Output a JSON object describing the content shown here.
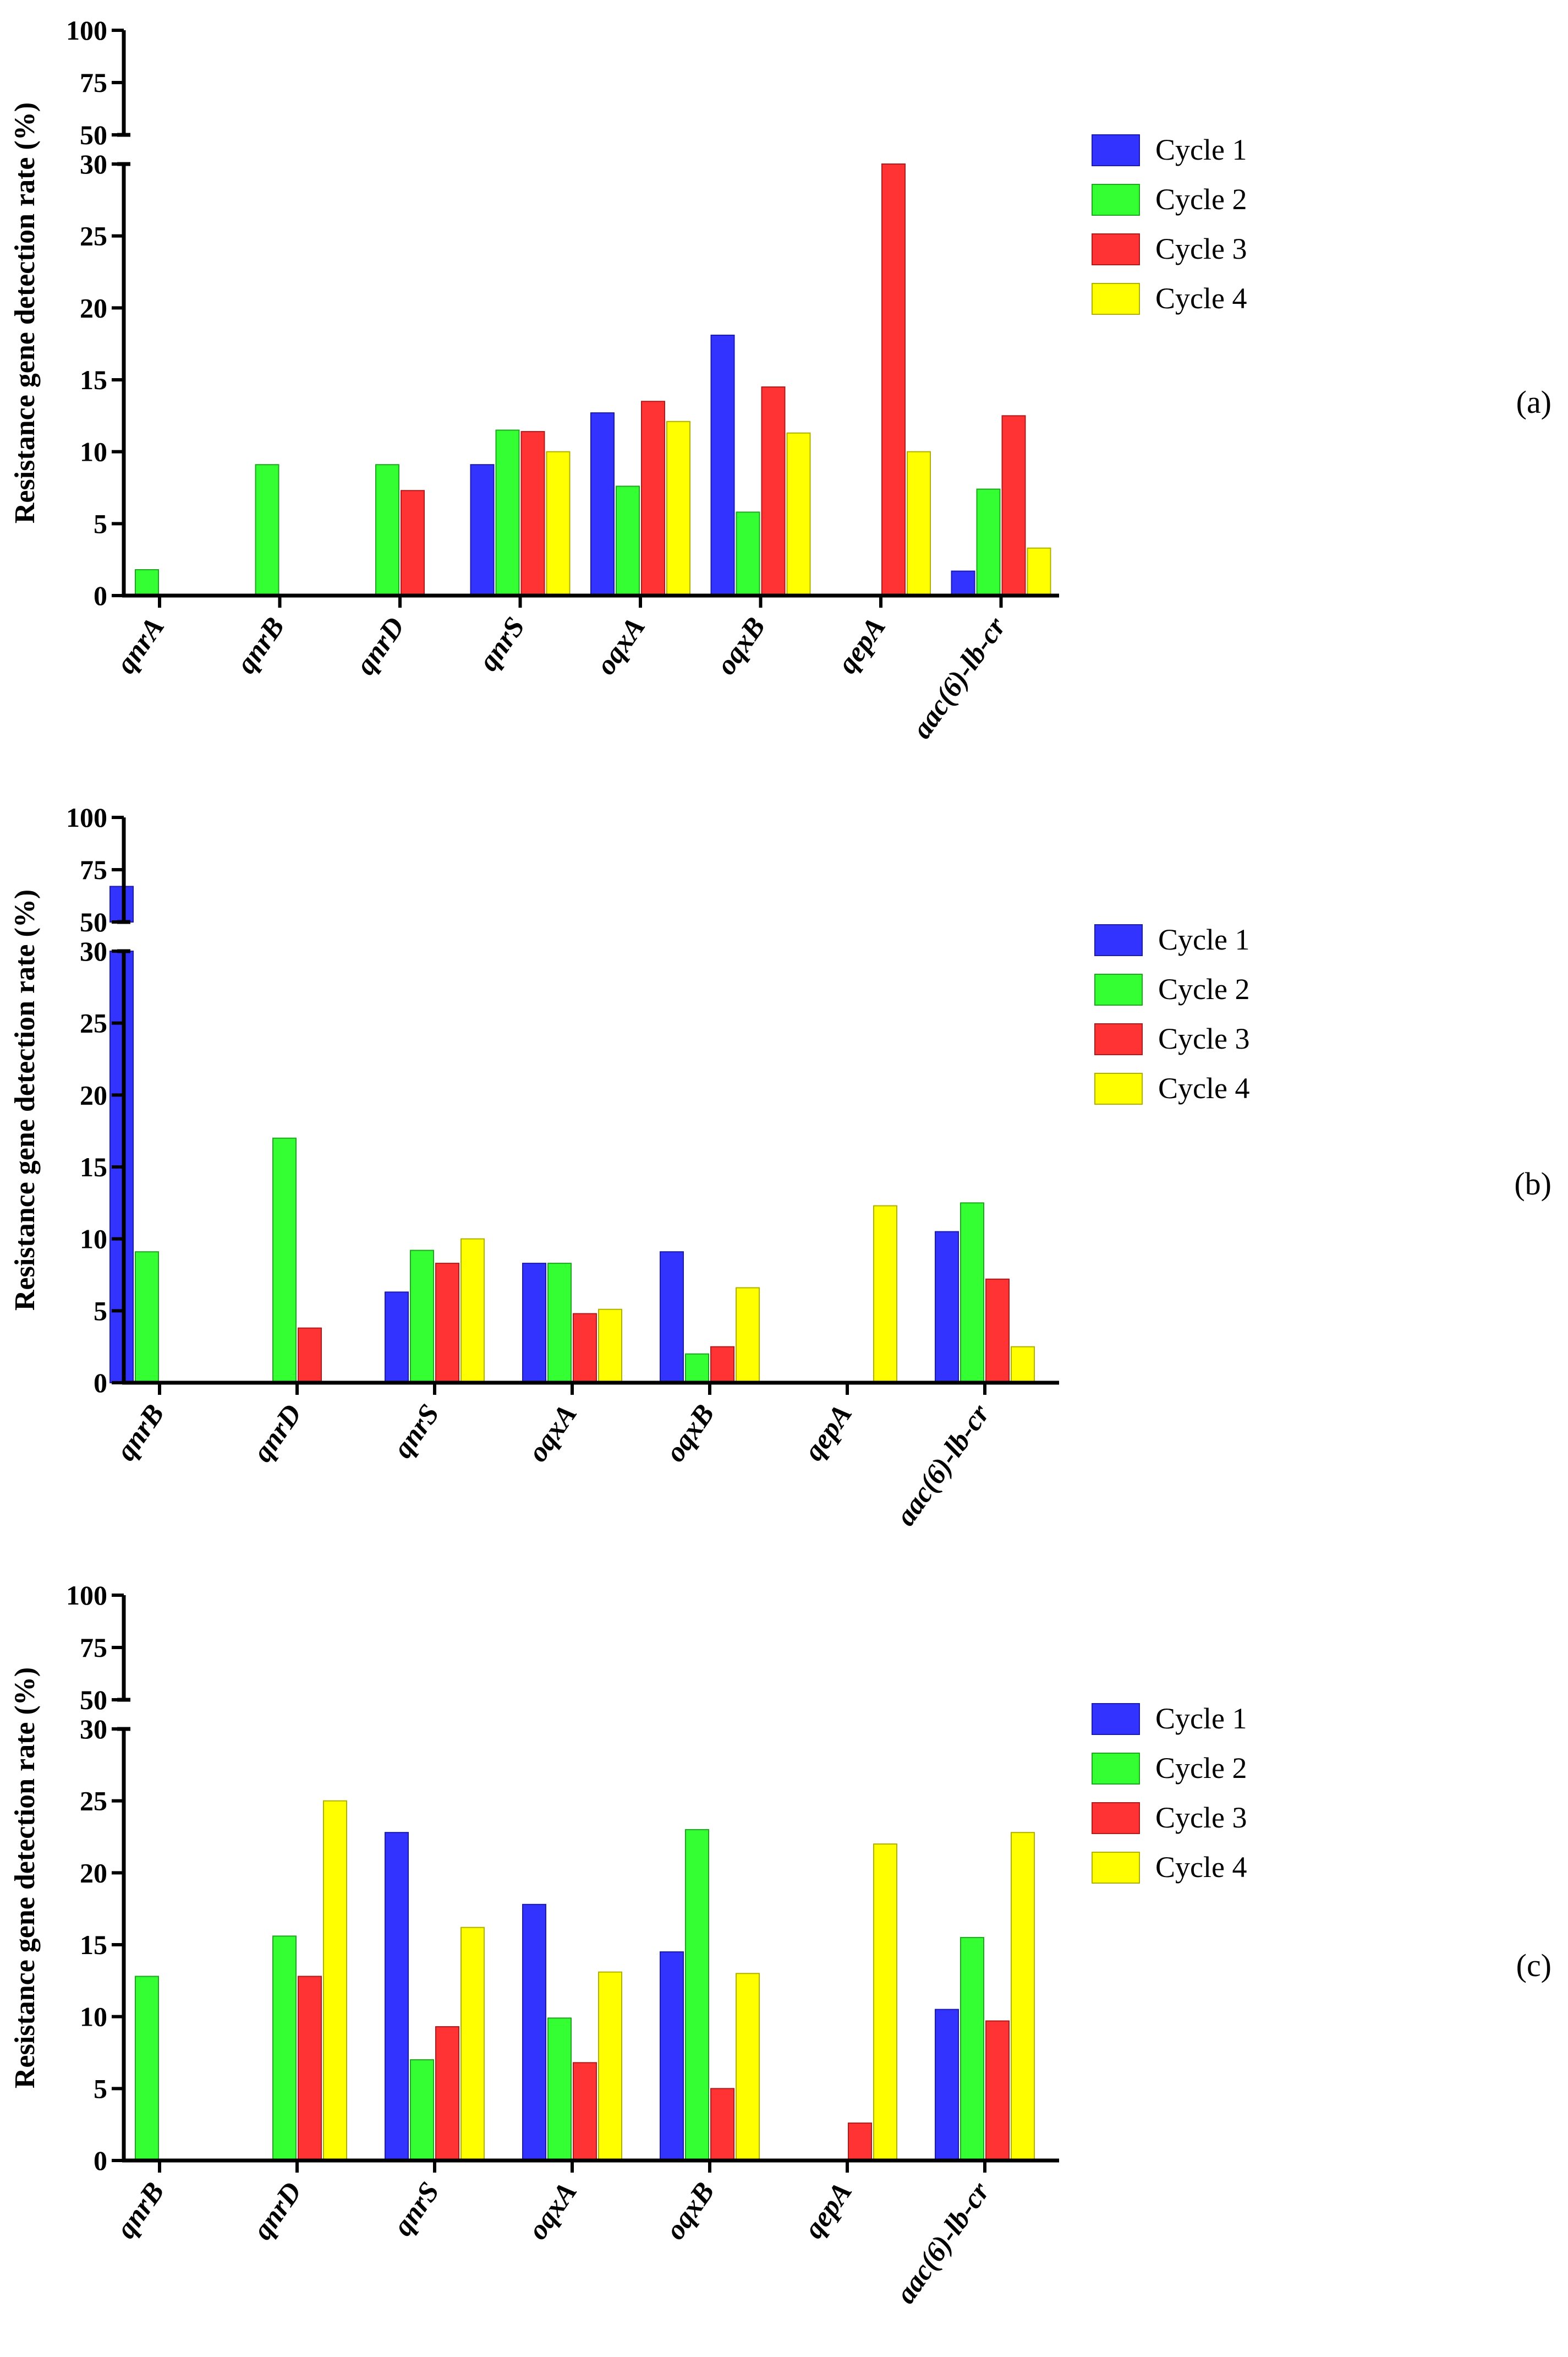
{
  "colors": {
    "series": [
      "#3333ff",
      "#33ff33",
      "#ff3333",
      "#ffff00"
    ],
    "edges": [
      "#1b1bb0",
      "#1fa81f",
      "#b01b1b",
      "#b0b000"
    ],
    "axis": "#000000"
  },
  "chart_data": [
    {
      "type": "bar",
      "panel_label": "(a)",
      "ylabel": "Resistance gene detection rate (%)",
      "xlabel": "",
      "ylim": [
        0,
        100
      ],
      "axis_break": [
        30,
        50
      ],
      "upper_ticks": [
        "100",
        "75",
        "50"
      ],
      "lower_ticks": [
        "0",
        "5",
        "10",
        "15",
        "20",
        "25",
        "30"
      ],
      "legend_position": "top-right",
      "categories": [
        "qnrA",
        "qnrB",
        "qnrD",
        "qnrS",
        "oqxA",
        "oqxB",
        "qepA",
        "aac(6)-lb-cr"
      ],
      "series": [
        {
          "name": "Cycle 1",
          "values": [
            0,
            0,
            0,
            9.1,
            12.7,
            18.1,
            0,
            1.7
          ]
        },
        {
          "name": "Cycle 2",
          "values": [
            1.8,
            9.1,
            9.1,
            11.5,
            7.6,
            5.8,
            0,
            7.4
          ]
        },
        {
          "name": "Cycle 3",
          "values": [
            0,
            0,
            7.3,
            11.4,
            13.5,
            14.5,
            30,
            12.5
          ]
        },
        {
          "name": "Cycle 4",
          "values": [
            0,
            0,
            0,
            10,
            12.1,
            11.3,
            10,
            3.3
          ]
        }
      ]
    },
    {
      "type": "bar",
      "panel_label": "(b)",
      "ylabel": "Resistance gene detection rate (%)",
      "xlabel": "",
      "ylim": [
        0,
        100
      ],
      "axis_break": [
        30,
        50
      ],
      "upper_ticks": [
        "100",
        "75",
        "50"
      ],
      "lower_ticks": [
        "0",
        "5",
        "10",
        "15",
        "20",
        "25",
        "30"
      ],
      "legend_position": "top-right",
      "categories": [
        "qnrB",
        "qnrD",
        "qnrS",
        "oqxA",
        "oqxB",
        "qepA",
        "aac(6)-lb-cr"
      ],
      "series": [
        {
          "name": "Cycle 1",
          "values": [
            67,
            0,
            6.3,
            8.3,
            9.1,
            0,
            10.5
          ]
        },
        {
          "name": "Cycle 2",
          "values": [
            9.1,
            17,
            9.2,
            8.3,
            2,
            0,
            12.5
          ]
        },
        {
          "name": "Cycle 3",
          "values": [
            0,
            3.8,
            8.3,
            4.8,
            2.5,
            0,
            7.2
          ]
        },
        {
          "name": "Cycle 4",
          "values": [
            0,
            0,
            10,
            5.1,
            6.6,
            12.3,
            2.5
          ]
        }
      ]
    },
    {
      "type": "bar",
      "panel_label": "(c)",
      "ylabel": "Resistance gene detection rate (%)",
      "xlabel": "",
      "ylim": [
        0,
        100
      ],
      "axis_break": [
        30,
        50
      ],
      "upper_ticks": [
        "100",
        "75",
        "50"
      ],
      "lower_ticks": [
        "0",
        "5",
        "10",
        "15",
        "20",
        "25",
        "30"
      ],
      "legend_position": "top-right",
      "categories": [
        "qnrB",
        "qnrD",
        "qnrS",
        "oqxA",
        "oqxB",
        "qepA",
        "aac(6)-lb-cr"
      ],
      "series": [
        {
          "name": "Cycle 1",
          "values": [
            0,
            0,
            22.8,
            17.8,
            14.5,
            0,
            10.5
          ]
        },
        {
          "name": "Cycle 2",
          "values": [
            12.8,
            15.6,
            7,
            9.9,
            23,
            0,
            15.5
          ]
        },
        {
          "name": "Cycle 3",
          "values": [
            0,
            12.8,
            9.3,
            6.8,
            5,
            2.6,
            9.7
          ]
        },
        {
          "name": "Cycle 4",
          "values": [
            0,
            25,
            16.2,
            13.1,
            13,
            22,
            22.8
          ]
        }
      ]
    }
  ]
}
